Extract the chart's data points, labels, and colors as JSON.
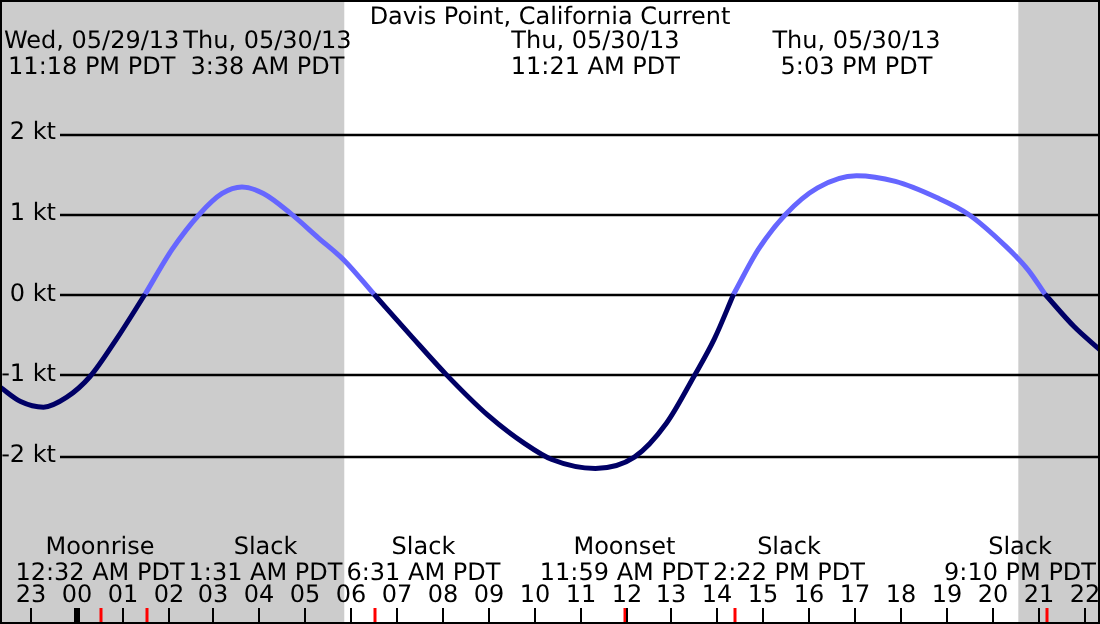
{
  "chart_data": {
    "type": "line",
    "title": "Davis Point, California Current",
    "x": [
      "--05-29T22:21",
      "--05-29T22:48",
      "--05-29T23:18",
      "--05-29T23:48",
      "--05-30T00:19",
      "--05-30T00:54",
      "--05-30T01:31",
      "--05-30T02:06",
      "--05-30T02:42",
      "--05-30T03:12",
      "--05-30T03:38",
      "--05-30T04:06",
      "--05-30T04:42",
      "--05-30T05:18",
      "--05-30T05:52",
      "--05-30T06:31",
      "--05-30T07:18",
      "--05-30T08:06",
      "--05-30T09:00",
      "--05-30T09:48",
      "--05-30T10:24",
      "--05-30T11:21",
      "--05-30T12:12",
      "--05-30T12:54",
      "--05-30T13:30",
      "--05-30T13:57",
      "--05-30T14:22",
      "--05-30T14:54",
      "--05-30T15:30",
      "--05-30T16:12",
      "--05-30T17:03",
      "--05-30T17:54",
      "--05-30T18:48",
      "--05-30T19:30",
      "--05-30T20:18",
      "--05-30T20:48",
      "--05-30T21:10",
      "--05-30T21:48",
      "--05-30T22:22"
    ],
    "series": [
      {
        "color": "#000066",
        "values": [
          -1.15,
          -1.33,
          -1.4,
          -1.28,
          -1.02,
          -0.55,
          0,
          null,
          null,
          null,
          null,
          null,
          null,
          null,
          null,
          0,
          -0.5,
          -1.0,
          -1.5,
          -1.85,
          -2.05,
          -2.16,
          -2.02,
          -1.6,
          -1.02,
          -0.55,
          0,
          null,
          null,
          null,
          null,
          null,
          null,
          null,
          null,
          null,
          0,
          -0.4,
          -0.69
        ]
      },
      {
        "color": "#6666ff",
        "values": [
          null,
          null,
          null,
          null,
          null,
          null,
          0,
          0.55,
          0.99,
          1.25,
          1.33,
          1.25,
          1.0,
          0.7,
          0.42,
          0,
          null,
          null,
          null,
          null,
          null,
          null,
          null,
          null,
          null,
          null,
          0,
          0.55,
          0.99,
          1.32,
          1.47,
          1.4,
          1.2,
          0.99,
          0.6,
          0.3,
          0,
          null,
          null
        ]
      }
    ],
    "xlim": [
      "--05-29T22:21",
      "--05-30T22:22"
    ],
    "xticks": [
      {
        "value": "--05-29T23:00",
        "label": "23"
      },
      {
        "value": "--05-30T00:00",
        "label": "00"
      },
      {
        "value": "--05-30T00:32",
        "label": null
      },
      {
        "value": "--05-30T01:00",
        "label": "01"
      },
      {
        "value": "--05-30T01:31",
        "label": null
      },
      {
        "value": "--05-30T02:00",
        "label": "02"
      },
      {
        "value": "--05-30T03:00",
        "label": "03"
      },
      {
        "value": "--05-30T04:00",
        "label": "04"
      },
      {
        "value": "--05-30T05:00",
        "label": "05"
      },
      {
        "value": "--05-30T06:00",
        "label": "06"
      },
      {
        "value": "--05-30T06:31",
        "label": null
      },
      {
        "value": "--05-30T07:00",
        "label": "07"
      },
      {
        "value": "--05-30T08:00",
        "label": "08"
      },
      {
        "value": "--05-30T09:00",
        "label": "09"
      },
      {
        "value": "--05-30T10:00",
        "label": "10"
      },
      {
        "value": "--05-30T11:00",
        "label": "11"
      },
      {
        "value": "--05-30T11:59",
        "label": null
      },
      {
        "value": "--05-30T12:00",
        "label": "12"
      },
      {
        "value": "--05-30T13:00",
        "label": "13"
      },
      {
        "value": "--05-30T14:00",
        "label": "14"
      },
      {
        "value": "--05-30T14:22",
        "label": null
      },
      {
        "value": "--05-30T15:00",
        "label": "15"
      },
      {
        "value": "--05-30T16:00",
        "label": "16"
      },
      {
        "value": "--05-30T17:00",
        "label": "17"
      },
      {
        "value": "--05-30T18:00",
        "label": "18"
      },
      {
        "value": "--05-30T19:00",
        "label": "19"
      },
      {
        "value": "--05-30T20:00",
        "label": "20"
      },
      {
        "value": "--05-30T21:00",
        "label": "21"
      },
      {
        "value": "--05-30T21:10",
        "label": null
      },
      {
        "value": "--05-30T22:00",
        "label": "22"
      }
    ],
    "ylim": [
      -4.09,
      3.65
    ],
    "yticks": [
      {
        "value": 2,
        "label": "2 kt"
      },
      {
        "value": 1,
        "label": "1 kt"
      },
      {
        "value": 0,
        "label": "0 kt"
      },
      {
        "value": -1,
        "label": "-1 kt"
      },
      {
        "value": -2,
        "label": "-2 kt"
      }
    ],
    "grid": "y",
    "bands": [
      {
        "axis": "x",
        "from": "--05-29T22:21",
        "to": "--05-30T05:52",
        "color": "#cccccc"
      },
      {
        "axis": "x",
        "from": "--05-30T20:35",
        "to": "--05-30T22:22",
        "color": "#cccccc"
      }
    ],
    "annotations": [
      "Wed, 05/29/13\n11:18 PM PDT",
      "Thu, 05/30/13\n3:38 AM PDT",
      "Thu, 05/30/13\n11:21 AM PDT",
      "Thu, 05/30/13\n5:03 PM PDT",
      "Moonrise\n12:32 AM PDT",
      "Slack\n1:31 AM PDT",
      "Slack\n6:31 AM PDT",
      "Moonset\n11:59 AM PDT",
      "Slack\n2:22 PM PDT",
      "Slack\n9:10 PM PDT"
    ]
  }
}
